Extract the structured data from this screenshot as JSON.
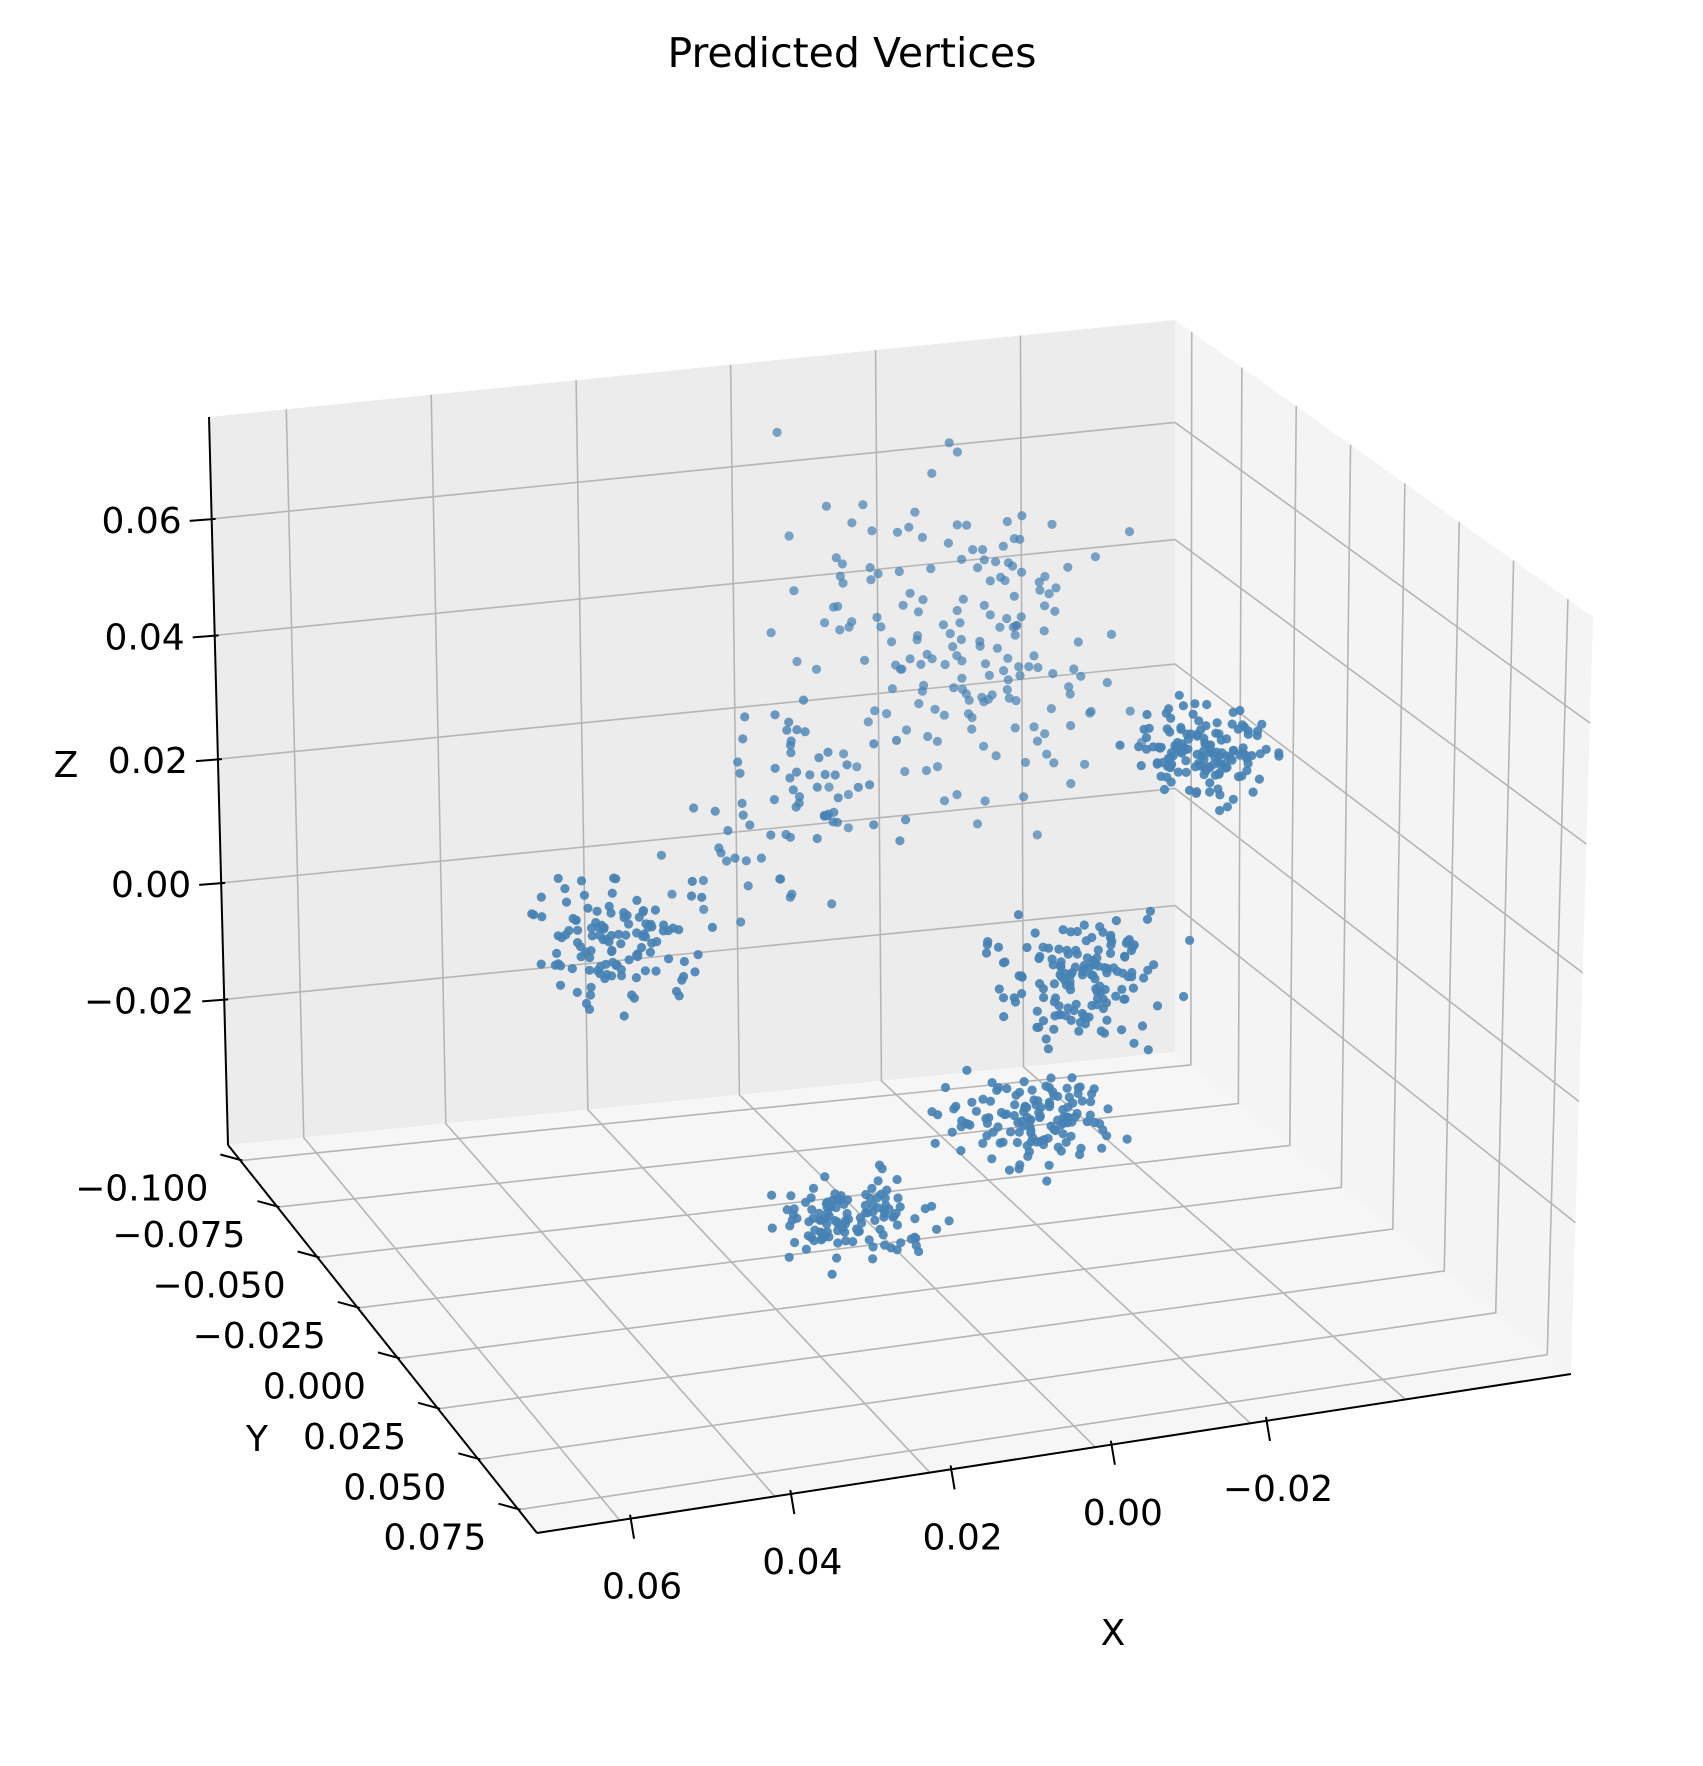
{
  "chart_data": {
    "type": "scatter",
    "title": "Predicted Vertices",
    "xlabel": "X",
    "ylabel": "Y",
    "zlabel": "Z",
    "projection": "3d",
    "grid": true,
    "color": "#4682b4",
    "x_ticks": [
      "0.06",
      "0.04",
      "0.02",
      "0.00",
      "−0.02"
    ],
    "y_ticks": [
      "−0.100",
      "−0.075",
      "−0.050",
      "−0.025",
      "0.000",
      "0.025",
      "0.050",
      "0.075"
    ],
    "z_ticks": [
      "0.06",
      "0.04",
      "0.02",
      "0.00",
      "−0.02"
    ],
    "xlim": [
      -0.03,
      0.07
    ],
    "ylim": [
      -0.11,
      0.08
    ],
    "zlim": [
      -0.025,
      0.08
    ]
  }
}
